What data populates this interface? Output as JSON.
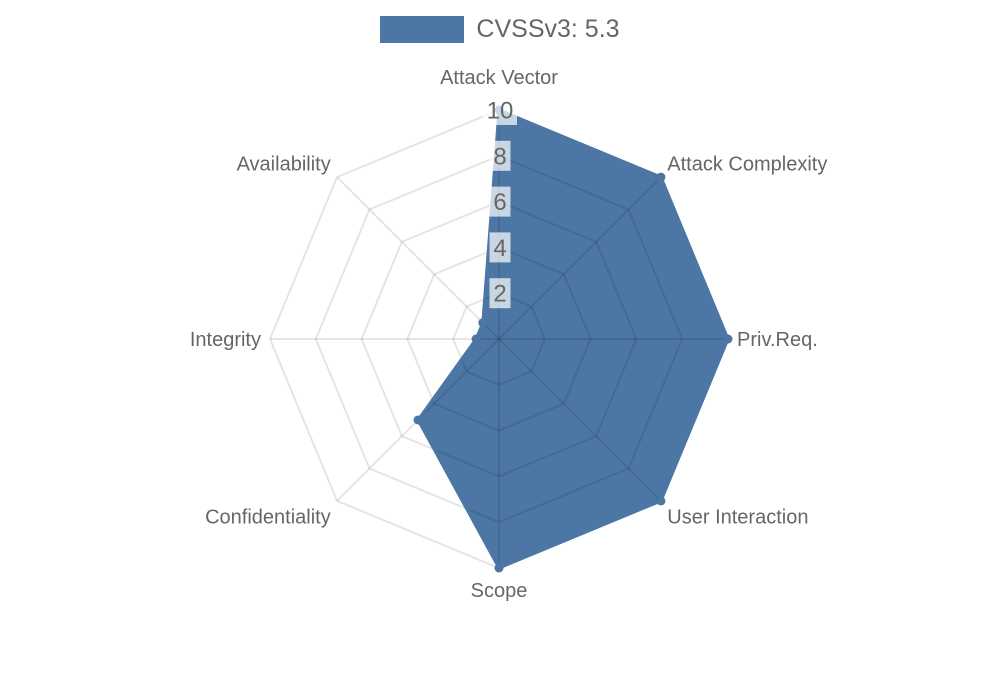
{
  "page": {
    "background_color": "#ffffff"
  },
  "chart_data": {
    "type": "radar",
    "title": "CVSSv3: 5.3",
    "legend_position": "top",
    "categories": [
      "Attack Vector",
      "Attack Complexity",
      "Priv.Req.",
      "User Interaction",
      "Scope",
      "Confidentiality",
      "Integrity",
      "Availability"
    ],
    "series": [
      {
        "name": "CVSSv3: 5.3",
        "values": [
          10,
          10,
          10,
          10,
          10,
          5,
          1,
          1
        ]
      }
    ],
    "scale": {
      "min": 0,
      "max": 10,
      "tick_step": 2,
      "tick_labels": [
        "2",
        "4",
        "6",
        "8",
        "10"
      ],
      "grid_shape": "polygon",
      "grid_on": true
    },
    "colors": {
      "series_fill": "#4c76a4",
      "series_border": "#4c76a4",
      "grid_line": "rgba(0,0,0,0.1)",
      "axis_label": "#666666",
      "tick_label": "#666666",
      "tick_backdrop": "rgba(255,255,255,0.7)"
    }
  }
}
